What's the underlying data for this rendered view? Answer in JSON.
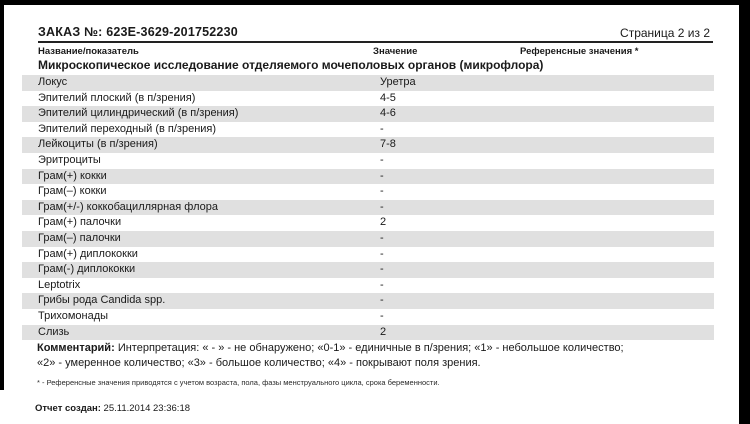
{
  "header": {
    "order_label": "ЗАКАЗ №: 623E-3629-201752230",
    "page_indicator": "Страница 2 из 2"
  },
  "table": {
    "columns": [
      "Название/показатель",
      "Значение",
      "Референсные значения *"
    ],
    "section_title": "Микроскопическое исследование отделяемого мочеполовых органов (микрофлора)",
    "rows": [
      {
        "name": "Локус",
        "value": "Уретра",
        "ref": ""
      },
      {
        "name": "Эпителий плоский (в п/зрения)",
        "value": "4-5",
        "ref": ""
      },
      {
        "name": "Эпителий цилиндрический (в п/зрения)",
        "value": "4-6",
        "ref": ""
      },
      {
        "name": "Эпителий переходный (в п/зрения)",
        "value": "-",
        "ref": ""
      },
      {
        "name": "Лейкоциты (в п/зрения)",
        "value": "7-8",
        "ref": ""
      },
      {
        "name": "Эритроциты",
        "value": "-",
        "ref": ""
      },
      {
        "name": "Грам(+) кокки",
        "value": "-",
        "ref": ""
      },
      {
        "name": "Грам(–) кокки",
        "value": "-",
        "ref": ""
      },
      {
        "name": "Грам(+/-) коккобациллярная флора",
        "value": "-",
        "ref": ""
      },
      {
        "name": "Грам(+) палочки",
        "value": "2",
        "ref": ""
      },
      {
        "name": "Грам(–) палочки",
        "value": "-",
        "ref": ""
      },
      {
        "name": "Грам(+) диплококки",
        "value": "-",
        "ref": ""
      },
      {
        "name": "Грам(-) диплококки",
        "value": "-",
        "ref": ""
      },
      {
        "name": "Leptotrix",
        "value": "-",
        "ref": ""
      },
      {
        "name": "Грибы рода Candida spp.",
        "value": "-",
        "ref": ""
      },
      {
        "name": "Трихомонады",
        "value": "-",
        "ref": ""
      },
      {
        "name": "Слизь",
        "value": "2",
        "ref": ""
      }
    ]
  },
  "comment": {
    "label": "Комментарий:",
    "line1": "Интерпретация: « - » - не обнаружено; «0-1» - единичные в п/зрения; «1» - небольшое количество;",
    "line2": "«2» - умеренное количество; «3» - большое количество; «4» - покрывают поля зрения."
  },
  "footnote": "* - Референсные значения приводятся с учетом возраста, пола, фазы менструального цикла, срока беременности.",
  "footer": {
    "label": "Отчет создан:",
    "timestamp": "25.11.2014 23:36:18"
  },
  "colors": {
    "row_stripe": "#e0e0e0",
    "screen_bar": "#000000",
    "text": "#1a1a1a"
  }
}
